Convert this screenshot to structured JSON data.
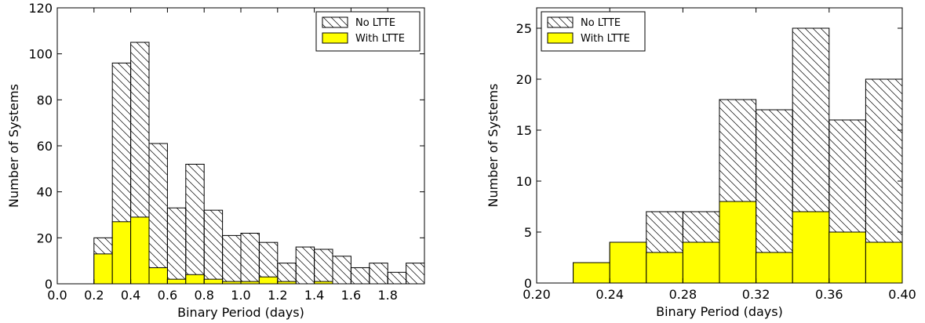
{
  "chart_data": [
    {
      "type": "histogram",
      "xlabel": "Binary Period (days)",
      "ylabel": "Number of Systems",
      "legend": "upper right",
      "bins": [
        0.0,
        0.1,
        0.2,
        0.3,
        0.4,
        0.5,
        0.6,
        0.7,
        0.8,
        0.9,
        1.0,
        1.1,
        1.2,
        1.3,
        1.4,
        1.5,
        1.6,
        1.7,
        1.8,
        1.9,
        2.0
      ],
      "series": [
        {
          "name": "No LTTE",
          "color": "#ffffff",
          "hatch": true,
          "values": [
            0,
            0,
            20,
            96,
            105,
            61,
            33,
            52,
            32,
            21,
            22,
            18,
            9,
            16,
            15,
            12,
            7,
            9,
            5,
            9
          ]
        },
        {
          "name": "With LTTE",
          "color": "#ffff00",
          "hatch": false,
          "values": [
            0,
            0,
            13,
            27,
            29,
            7,
            2,
            4,
            2,
            1,
            1,
            3,
            1,
            0,
            1,
            0,
            0,
            0,
            0,
            0
          ]
        }
      ],
      "xlim": [
        0,
        2
      ],
      "xticks": [
        {
          "value": 0,
          "label": "0.0"
        },
        0.2,
        0.4,
        0.6,
        0.8,
        {
          "value": 1,
          "label": "1.0"
        },
        1.2,
        1.4,
        1.6,
        1.8
      ],
      "ylim": [
        0,
        120
      ],
      "yticks": [
        0,
        20,
        40,
        60,
        80,
        100,
        120
      ]
    },
    {
      "type": "histogram",
      "xlabel": "Binary Period (days)",
      "ylabel": "Number of Systems",
      "legend": "upper left",
      "bins": [
        0.2,
        0.22,
        0.24,
        0.26,
        0.28,
        0.3,
        0.32,
        0.34,
        0.36,
        0.38,
        0.4
      ],
      "series": [
        {
          "name": "No LTTE",
          "color": "#ffffff",
          "hatch": true,
          "values": [
            0,
            2,
            4,
            7,
            7,
            18,
            17,
            25,
            16,
            20
          ]
        },
        {
          "name": "With LTTE",
          "color": "#ffff00",
          "hatch": false,
          "values": [
            0,
            2,
            4,
            3,
            4,
            8,
            3,
            7,
            5,
            4
          ]
        }
      ],
      "xlim": [
        0.2,
        0.4
      ],
      "xticks": [
        {
          "value": 0.2,
          "label": "0.20"
        },
        {
          "value": 0.24,
          "label": "0.24"
        },
        {
          "value": 0.28,
          "label": "0.28"
        },
        {
          "value": 0.32,
          "label": "0.32"
        },
        {
          "value": 0.36,
          "label": "0.36"
        },
        {
          "value": 0.4,
          "label": "0.40"
        }
      ],
      "ylim": [
        0,
        27
      ],
      "yticks": [
        0,
        5,
        10,
        15,
        20,
        25
      ]
    }
  ]
}
